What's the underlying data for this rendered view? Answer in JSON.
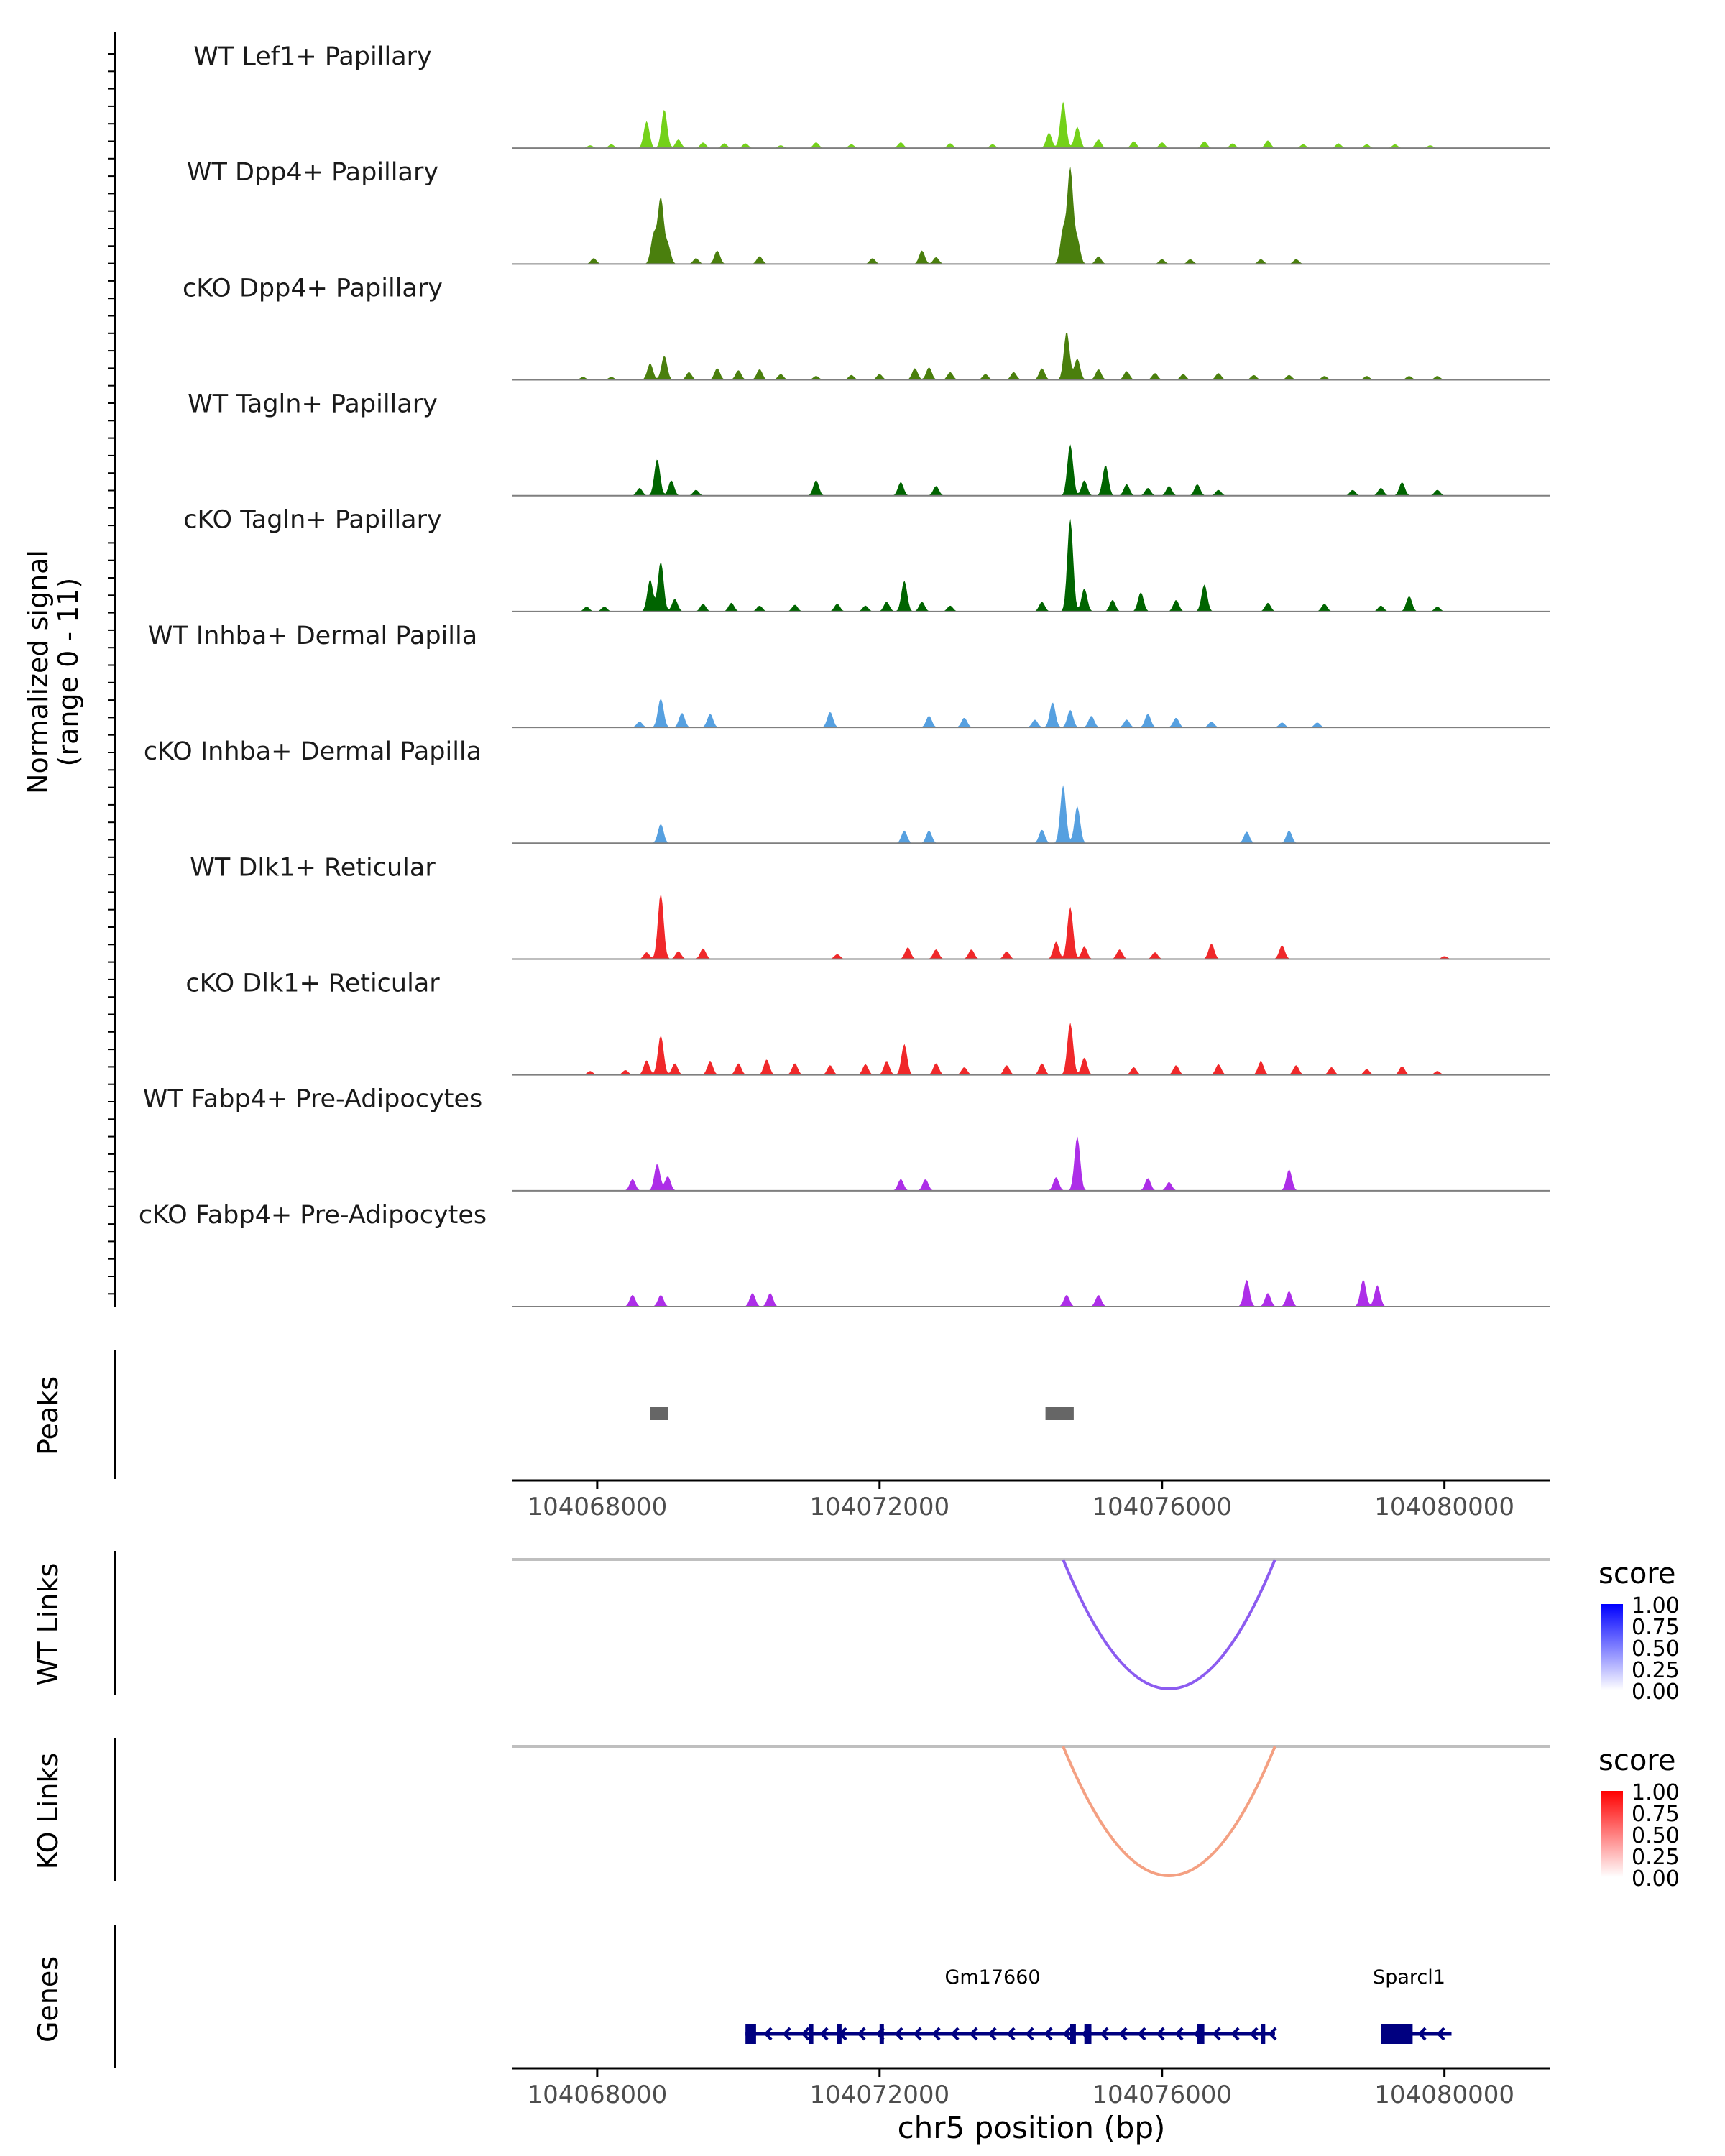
{
  "chart_data": {
    "type": "area",
    "title": "",
    "region": {
      "chrom": "chr5",
      "xlim": [
        104066800,
        104081500
      ]
    },
    "colors": {
      "track_baseline": "#7f7f7f",
      "axis": "#000000",
      "tick_label": "#4d4d4d",
      "peak": "#666666",
      "link_base": "#bfbfbf",
      "gene": "#000080"
    },
    "coverage": {
      "ylabel_line1": "Normalized signal",
      "ylabel_line2": "(range 0 - 11)",
      "ylim": [
        0,
        11
      ],
      "tracks": [
        {
          "name": "WT Lef1+ Papillary",
          "color": "#74d11a",
          "peaks": [
            [
              104067900,
              0.3
            ],
            [
              104068200,
              0.4
            ],
            [
              104068700,
              2.8
            ],
            [
              104068950,
              4.0
            ],
            [
              104069150,
              0.9
            ],
            [
              104069500,
              0.6
            ],
            [
              104069800,
              0.5
            ],
            [
              104070100,
              0.5
            ],
            [
              104070600,
              0.3
            ],
            [
              104071100,
              0.6
            ],
            [
              104071600,
              0.4
            ],
            [
              104072300,
              0.6
            ],
            [
              104073000,
              0.5
            ],
            [
              104073600,
              0.4
            ],
            [
              104074400,
              1.6
            ],
            [
              104074600,
              4.8
            ],
            [
              104074800,
              2.2
            ],
            [
              104075100,
              0.9
            ],
            [
              104075600,
              0.7
            ],
            [
              104076000,
              0.6
            ],
            [
              104076600,
              0.7
            ],
            [
              104077000,
              0.5
            ],
            [
              104077500,
              0.8
            ],
            [
              104078000,
              0.4
            ],
            [
              104078500,
              0.5
            ],
            [
              104078900,
              0.4
            ],
            [
              104079300,
              0.4
            ],
            [
              104079800,
              0.3
            ]
          ]
        },
        {
          "name": "WT Dpp4+ Papillary",
          "color": "#4a7f0d",
          "peaks": [
            [
              104067950,
              0.6
            ],
            [
              104068800,
              3.0
            ],
            [
              104068900,
              6.8
            ],
            [
              104069000,
              2.0
            ],
            [
              104069400,
              0.6
            ],
            [
              104069700,
              1.4
            ],
            [
              104070300,
              0.8
            ],
            [
              104071900,
              0.6
            ],
            [
              104072600,
              1.4
            ],
            [
              104072800,
              0.7
            ],
            [
              104074600,
              3.5
            ],
            [
              104074700,
              9.8
            ],
            [
              104074800,
              2.5
            ],
            [
              104075100,
              0.8
            ],
            [
              104076000,
              0.5
            ],
            [
              104076400,
              0.5
            ],
            [
              104077400,
              0.5
            ],
            [
              104077900,
              0.5
            ]
          ]
        },
        {
          "name": "cKO Dpp4+ Papillary",
          "color": "#4a7f0d",
          "peaks": [
            [
              104067800,
              0.3
            ],
            [
              104068200,
              0.3
            ],
            [
              104068750,
              1.7
            ],
            [
              104068950,
              2.5
            ],
            [
              104069300,
              0.8
            ],
            [
              104069700,
              1.2
            ],
            [
              104070000,
              1.0
            ],
            [
              104070300,
              1.1
            ],
            [
              104070600,
              0.6
            ],
            [
              104071100,
              0.4
            ],
            [
              104071600,
              0.5
            ],
            [
              104072000,
              0.6
            ],
            [
              104072500,
              1.2
            ],
            [
              104072700,
              1.3
            ],
            [
              104073000,
              0.8
            ],
            [
              104073500,
              0.6
            ],
            [
              104073900,
              0.8
            ],
            [
              104074300,
              1.2
            ],
            [
              104074650,
              5.0
            ],
            [
              104074800,
              2.2
            ],
            [
              104075100,
              1.1
            ],
            [
              104075500,
              0.9
            ],
            [
              104075900,
              0.7
            ],
            [
              104076300,
              0.6
            ],
            [
              104076800,
              0.7
            ],
            [
              104077300,
              0.5
            ],
            [
              104077800,
              0.5
            ],
            [
              104078300,
              0.4
            ],
            [
              104078900,
              0.4
            ],
            [
              104079500,
              0.4
            ],
            [
              104079900,
              0.4
            ]
          ]
        },
        {
          "name": "WT Tagln+ Papillary",
          "color": "#006400",
          "peaks": [
            [
              104068600,
              0.8
            ],
            [
              104068850,
              3.8
            ],
            [
              104069050,
              1.6
            ],
            [
              104069400,
              0.6
            ],
            [
              104071100,
              1.6
            ],
            [
              104072300,
              1.4
            ],
            [
              104072800,
              1.0
            ],
            [
              104074700,
              5.3
            ],
            [
              104074900,
              1.6
            ],
            [
              104075200,
              3.2
            ],
            [
              104075500,
              1.2
            ],
            [
              104075800,
              0.8
            ],
            [
              104076100,
              1.0
            ],
            [
              104076500,
              1.2
            ],
            [
              104076800,
              0.6
            ],
            [
              104078700,
              0.6
            ],
            [
              104079100,
              0.8
            ],
            [
              104079400,
              1.4
            ],
            [
              104079900,
              0.6
            ]
          ]
        },
        {
          "name": "cKO Tagln+ Papillary",
          "color": "#006400",
          "peaks": [
            [
              104067850,
              0.5
            ],
            [
              104068100,
              0.5
            ],
            [
              104068750,
              3.3
            ],
            [
              104068900,
              5.2
            ],
            [
              104069100,
              1.3
            ],
            [
              104069500,
              0.8
            ],
            [
              104069900,
              0.9
            ],
            [
              104070300,
              0.6
            ],
            [
              104070800,
              0.7
            ],
            [
              104071400,
              0.8
            ],
            [
              104071800,
              0.6
            ],
            [
              104072100,
              1.0
            ],
            [
              104072350,
              3.2
            ],
            [
              104072600,
              1.0
            ],
            [
              104073000,
              0.6
            ],
            [
              104074300,
              1.0
            ],
            [
              104074700,
              9.6
            ],
            [
              104074900,
              2.4
            ],
            [
              104075300,
              1.2
            ],
            [
              104075700,
              2.0
            ],
            [
              104076200,
              1.2
            ],
            [
              104076600,
              2.8
            ],
            [
              104077500,
              0.9
            ],
            [
              104078300,
              0.8
            ],
            [
              104079100,
              0.6
            ],
            [
              104079500,
              1.6
            ],
            [
              104079900,
              0.5
            ]
          ]
        },
        {
          "name": "WT Inhba+ Dermal Papilla",
          "color": "#56a0e0",
          "peaks": [
            [
              104068600,
              0.6
            ],
            [
              104068900,
              3.0
            ],
            [
              104069200,
              1.5
            ],
            [
              104069600,
              1.4
            ],
            [
              104071300,
              1.6
            ],
            [
              104072700,
              1.2
            ],
            [
              104073200,
              1.0
            ],
            [
              104074200,
              0.8
            ],
            [
              104074450,
              2.6
            ],
            [
              104074700,
              1.8
            ],
            [
              104075000,
              1.2
            ],
            [
              104075500,
              0.8
            ],
            [
              104075800,
              1.4
            ],
            [
              104076200,
              1.0
            ],
            [
              104076700,
              0.6
            ],
            [
              104077700,
              0.5
            ],
            [
              104078200,
              0.5
            ]
          ]
        },
        {
          "name": "cKO Inhba+ Dermal Papilla",
          "color": "#56a0e0",
          "peaks": [
            [
              104068900,
              2.0
            ],
            [
              104072350,
              1.3
            ],
            [
              104072700,
              1.3
            ],
            [
              104074300,
              1.4
            ],
            [
              104074600,
              6.0
            ],
            [
              104074800,
              3.8
            ],
            [
              104077200,
              1.2
            ],
            [
              104077800,
              1.3
            ]
          ]
        },
        {
          "name": "WT Dlk1+ Reticular",
          "color": "#f0282a",
          "peaks": [
            [
              104068700,
              0.7
            ],
            [
              104068900,
              6.8
            ],
            [
              104069150,
              0.8
            ],
            [
              104069500,
              1.1
            ],
            [
              104071400,
              0.5
            ],
            [
              104072400,
              1.2
            ],
            [
              104072800,
              1.0
            ],
            [
              104073300,
              1.0
            ],
            [
              104073800,
              0.8
            ],
            [
              104074500,
              1.8
            ],
            [
              104074700,
              5.4
            ],
            [
              104074900,
              1.3
            ],
            [
              104075400,
              1.0
            ],
            [
              104075900,
              0.7
            ],
            [
              104076700,
              1.6
            ],
            [
              104077700,
              1.4
            ],
            [
              104080000,
              0.3
            ]
          ]
        },
        {
          "name": "cKO Dlk1+ Reticular",
          "color": "#f0282a",
          "peaks": [
            [
              104067900,
              0.4
            ],
            [
              104068400,
              0.5
            ],
            [
              104068700,
              1.5
            ],
            [
              104068900,
              4.1
            ],
            [
              104069100,
              1.2
            ],
            [
              104069600,
              1.4
            ],
            [
              104070000,
              1.2
            ],
            [
              104070400,
              1.6
            ],
            [
              104070800,
              1.2
            ],
            [
              104071300,
              1.0
            ],
            [
              104071800,
              1.1
            ],
            [
              104072100,
              1.4
            ],
            [
              104072350,
              3.2
            ],
            [
              104072800,
              1.2
            ],
            [
              104073200,
              0.8
            ],
            [
              104073800,
              1.0
            ],
            [
              104074300,
              1.2
            ],
            [
              104074700,
              5.4
            ],
            [
              104074900,
              1.8
            ],
            [
              104075600,
              0.8
            ],
            [
              104076200,
              1.0
            ],
            [
              104076800,
              1.1
            ],
            [
              104077400,
              1.4
            ],
            [
              104077900,
              1.0
            ],
            [
              104078400,
              0.8
            ],
            [
              104078900,
              0.6
            ],
            [
              104079400,
              0.9
            ],
            [
              104079900,
              0.4
            ]
          ]
        },
        {
          "name": "WT Fabp4+ Pre-Adipocytes",
          "color": "#ad2ee8",
          "peaks": [
            [
              104068500,
              1.2
            ],
            [
              104068850,
              2.8
            ],
            [
              104069000,
              1.5
            ],
            [
              104072300,
              1.2
            ],
            [
              104072650,
              1.2
            ],
            [
              104074500,
              1.4
            ],
            [
              104074800,
              5.6
            ],
            [
              104075800,
              1.3
            ],
            [
              104076100,
              0.9
            ],
            [
              104077800,
              2.2
            ]
          ]
        },
        {
          "name": "cKO Fabp4+ Pre-Adipocytes",
          "color": "#ad2ee8",
          "peaks": [
            [
              104068500,
              1.2
            ],
            [
              104068900,
              1.2
            ],
            [
              104070200,
              1.4
            ],
            [
              104070450,
              1.4
            ],
            [
              104074650,
              1.2
            ],
            [
              104075100,
              1.2
            ],
            [
              104077200,
              2.8
            ],
            [
              104077500,
              1.4
            ],
            [
              104077800,
              1.6
            ],
            [
              104078850,
              2.8
            ],
            [
              104079050,
              2.2
            ]
          ]
        }
      ]
    },
    "peaks_track": {
      "ylabel": "Peaks",
      "peaks": [
        [
          104068750,
          104069000
        ],
        [
          104074350,
          104074750
        ]
      ]
    },
    "axis": {
      "ticks": [
        104068000,
        104072000,
        104076000,
        104080000
      ],
      "tick_labels": [
        "104068000",
        "104072000",
        "104076000",
        "104080000"
      ],
      "xlabel": "chr5 position (bp)"
    },
    "links": [
      {
        "ylabel": "WT Links",
        "legend_title": "score",
        "legend_labels": [
          "1.00",
          "0.75",
          "0.50",
          "0.25",
          "0.00"
        ],
        "low_color": "#ffffff",
        "high_color": "#0000ff",
        "link_color": "#8c5cf0",
        "arcs": [
          {
            "start": 104074600,
            "end": 104077600,
            "score": 0.6
          }
        ]
      },
      {
        "ylabel": "KO Links",
        "legend_title": "score",
        "legend_labels": [
          "1.00",
          "0.75",
          "0.50",
          "0.25",
          "0.00"
        ],
        "low_color": "#ffffff",
        "high_color": "#ff0000",
        "link_color": "#f4a082",
        "arcs": [
          {
            "start": 104074600,
            "end": 104077600,
            "score": 0.4
          }
        ]
      }
    ],
    "genes_track": {
      "ylabel": "Genes",
      "genes": [
        {
          "name": "Gm17660",
          "start": 104070100,
          "end": 104077600,
          "strand": "-",
          "exons": [
            [
              104070100,
              104070250
            ],
            [
              104071000,
              104071050
            ],
            [
              104071400,
              104071450
            ],
            [
              104072000,
              104072060
            ],
            [
              104074700,
              104074780
            ],
            [
              104074900,
              104075000
            ],
            [
              104076500,
              104076600
            ],
            [
              104077400,
              104077450
            ]
          ]
        },
        {
          "name": "Sparcl1",
          "start": 104079100,
          "end": 104080100,
          "strand": "-",
          "exons": [
            [
              104079100,
              104079550
            ]
          ]
        }
      ]
    }
  }
}
